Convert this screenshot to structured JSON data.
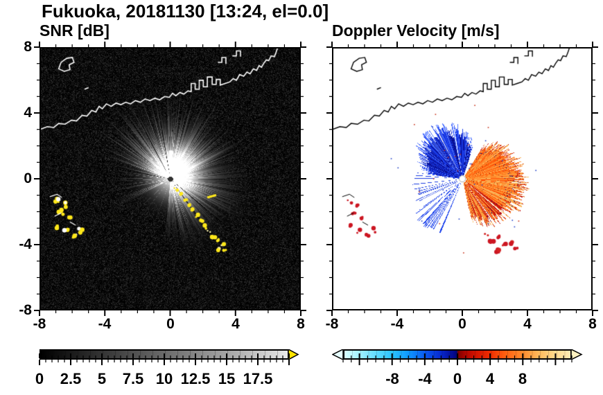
{
  "title": "Fukuoka, 20181130 [13:24, el=0.0]",
  "panels": {
    "snr": {
      "title": "SNR [dB]"
    },
    "velocity": {
      "title": "Doppler Velocity [m/s]"
    }
  },
  "axes": {
    "x_ticks": [
      "-8",
      "-4",
      "0",
      "4",
      "8"
    ],
    "y_ticks": [
      "8",
      "4",
      "0",
      "-4",
      "-8"
    ],
    "x_range": [
      -8,
      8
    ],
    "y_range": [
      -8,
      8
    ],
    "major_tick_step": 4,
    "minor_tick_step": 1
  },
  "colorbars": {
    "snr": {
      "labels": [
        "0",
        "2.5",
        "5",
        "7.5",
        "10",
        "12.5",
        "15",
        "17.5"
      ],
      "min": 0,
      "max": 20,
      "major_step": 2.5,
      "minor_step": 0.5,
      "scale_colors": [
        "#000000",
        "#e9e9e9"
      ],
      "overflow_arrow_color": "#ffe400"
    },
    "velocity": {
      "labels": [
        "-8",
        "-4",
        "0",
        "4",
        "8"
      ],
      "min": -14,
      "max": 14,
      "major_step": 4,
      "minor_step": 1,
      "underflow_arrow_color": "#e6ffff",
      "overflow_arrow_color": "#fff1c0"
    }
  },
  "chart_data": [
    {
      "type": "heatmap",
      "panel": "snr",
      "title": "SNR [dB]",
      "xlim": [
        -8,
        8
      ],
      "ylim": [
        -8,
        8
      ],
      "colorbar_ticks": [
        0,
        2.5,
        5,
        7.5,
        10,
        12.5,
        15,
        17.5
      ],
      "units": "dB",
      "description": "Radar SNR PPI centered on the radar at (0,0): bright streaky echo fan to the N-NE (radius 3.5-5.5), diffuse gray haze to the E-SE, mostly dark speckle to the SW, yellow high-SNR ground-clutter arc curving SE from the radar plus clutter patches near the west edge, coastline drawn in white.",
      "features": {
        "radar_origin": [
          0,
          0
        ],
        "bright_core_center": [
          0.3,
          0.45
        ],
        "bright_core_radius": 1.55,
        "fan_sector_deg": [
          20,
          160
        ],
        "haze_sector_deg": [
          -95,
          20
        ],
        "shadow_azimuths_deg": [
          -40,
          -54,
          100,
          118,
          168
        ],
        "spoke_azimuths_deg": [
          58,
          66,
          74,
          83,
          92,
          101,
          110,
          119,
          128,
          137,
          146
        ],
        "clutter_color": "#ffe81a",
        "clutter_arc": [
          [
            0.35,
            -0.6
          ],
          [
            0.65,
            -0.9
          ],
          [
            0.95,
            -1.25
          ],
          [
            1.15,
            -1.6
          ],
          [
            1.4,
            -1.95
          ],
          [
            1.65,
            -2.3
          ],
          [
            1.9,
            -2.6
          ],
          [
            2.15,
            -2.95
          ],
          [
            2.4,
            -3.25
          ],
          [
            2.7,
            -3.55
          ],
          [
            3.0,
            -3.8
          ],
          [
            3.25,
            -4.1
          ],
          [
            2.95,
            -4.35
          ],
          [
            3.35,
            -4.45
          ]
        ],
        "clutter_dash": [
          [
            2.3,
            -1.15
          ],
          [
            2.85,
            -1.0
          ]
        ],
        "clutter_west": [
          [
            -7.0,
            -1.35
          ],
          [
            -6.55,
            -1.6
          ],
          [
            -6.75,
            -2.05
          ],
          [
            -6.3,
            -2.4
          ],
          [
            -6.9,
            -2.95
          ],
          [
            -6.45,
            -3.25
          ],
          [
            -5.95,
            -3.5
          ],
          [
            -5.5,
            -3.15
          ]
        ]
      }
    },
    {
      "type": "heatmap",
      "panel": "velocity",
      "title": "Doppler Velocity [m/s]",
      "xlim": [
        -8,
        8
      ],
      "ylim": [
        -8,
        8
      ],
      "colorbar_ticks": [
        -8,
        -4,
        0,
        4,
        8
      ],
      "units": "m/s",
      "description": "Doppler velocity PPI: negative (blue/navy, toward radar) lobe NW of the radar out to ~3, positive (orange/red, away) lobe E-SE out to ~3.6 with red and navy mottling at its edge, thin blue rays to the W and SW, red clutter patches near the west edge and to the SE, coastline drawn in black.",
      "features": {
        "radar_origin": [
          0,
          0
        ],
        "toward_lobe_sector_deg": [
          72,
          172
        ],
        "away_lobe_sector_deg": [
          -78,
          58
        ],
        "thin_ray_sectors_deg": [
          [
            172,
            215
          ],
          [
            215,
            252
          ]
        ],
        "shadow_azimuths_deg": [
          -40,
          -54,
          100,
          118,
          66
        ],
        "clutter_color": "#cc1622",
        "clutter_west": [
          [
            -7.0,
            -1.35
          ],
          [
            -6.55,
            -1.6
          ],
          [
            -6.75,
            -2.05
          ],
          [
            -6.3,
            -2.4
          ],
          [
            -6.9,
            -2.95
          ],
          [
            -6.45,
            -3.25
          ],
          [
            -5.95,
            -3.5
          ],
          [
            -5.5,
            -3.15
          ]
        ],
        "clutter_southeast": [
          [
            1.5,
            -3.45
          ],
          [
            1.85,
            -3.8
          ],
          [
            2.3,
            -3.6
          ],
          [
            2.6,
            -4.1
          ],
          [
            3.0,
            -3.95
          ],
          [
            3.3,
            -4.35
          ],
          [
            2.2,
            -4.45
          ]
        ]
      }
    }
  ],
  "coastline": {
    "mainland": [
      [
        -8,
        3.05
      ],
      [
        -7.6,
        3.2
      ],
      [
        -7.2,
        3.15
      ],
      [
        -6.9,
        3.4
      ],
      [
        -6.5,
        3.35
      ],
      [
        -6.1,
        3.6
      ],
      [
        -5.8,
        3.55
      ],
      [
        -5.45,
        3.9
      ],
      [
        -5.15,
        3.85
      ],
      [
        -4.85,
        4.2
      ],
      [
        -4.6,
        4.1
      ],
      [
        -4.4,
        4.45
      ],
      [
        -4.2,
        4.3
      ],
      [
        -3.95,
        4.6
      ],
      [
        -3.65,
        4.45
      ],
      [
        -3.35,
        4.65
      ],
      [
        -3.05,
        4.55
      ],
      [
        -2.75,
        4.7
      ],
      [
        -2.45,
        4.6
      ],
      [
        -2.15,
        4.8
      ],
      [
        -1.85,
        4.7
      ],
      [
        -1.55,
        4.9
      ],
      [
        -1.25,
        4.8
      ],
      [
        -0.95,
        4.95
      ],
      [
        -0.65,
        4.85
      ],
      [
        -0.35,
        5.05
      ],
      [
        -0.05,
        5.0
      ],
      [
        0.15,
        5.25
      ],
      [
        0.35,
        5.1
      ],
      [
        0.6,
        5.3
      ],
      [
        0.85,
        5.2
      ],
      [
        1.1,
        5.4
      ],
      [
        1.3,
        5.35
      ],
      [
        1.3,
        5.85
      ],
      [
        1.55,
        5.85
      ],
      [
        1.55,
        5.5
      ],
      [
        1.8,
        5.5
      ],
      [
        1.8,
        6.05
      ],
      [
        2.05,
        6.05
      ],
      [
        2.05,
        5.65
      ],
      [
        2.3,
        5.65
      ],
      [
        2.3,
        6.25
      ],
      [
        2.6,
        6.25
      ],
      [
        2.6,
        5.8
      ],
      [
        2.85,
        5.8
      ],
      [
        2.85,
        6.1
      ],
      [
        3.1,
        6.1
      ],
      [
        3.1,
        5.75
      ],
      [
        3.4,
        5.85
      ],
      [
        3.7,
        5.95
      ],
      [
        3.9,
        6.15
      ],
      [
        4.1,
        6.05
      ],
      [
        4.3,
        6.4
      ],
      [
        4.55,
        6.3
      ],
      [
        4.75,
        6.55
      ],
      [
        4.95,
        6.45
      ],
      [
        5.15,
        6.75
      ],
      [
        5.35,
        6.65
      ],
      [
        5.5,
        6.95
      ],
      [
        5.65,
        6.85
      ],
      [
        5.8,
        7.1
      ],
      [
        5.95,
        7.3
      ],
      [
        6.1,
        7.25
      ],
      [
        6.25,
        7.55
      ],
      [
        6.45,
        7.5
      ],
      [
        6.55,
        7.75
      ],
      [
        6.65,
        8.05
      ]
    ],
    "island": [
      [
        -6.9,
        6.75
      ],
      [
        -6.55,
        6.6
      ],
      [
        -6.2,
        6.7
      ],
      [
        -6.25,
        7.0
      ],
      [
        -5.95,
        7.15
      ],
      [
        -6.05,
        7.45
      ],
      [
        -6.4,
        7.4
      ],
      [
        -6.75,
        7.15
      ]
    ],
    "fragments": [
      [
        [
          2.95,
          7.15
        ],
        [
          3.2,
          7.15
        ],
        [
          3.2,
          7.45
        ],
        [
          3.45,
          7.45
        ],
        [
          3.45,
          7.05
        ]
      ],
      [
        [
          3.85,
          7.55
        ],
        [
          4.1,
          7.55
        ],
        [
          4.1,
          7.85
        ],
        [
          4.35,
          7.85
        ],
        [
          4.35,
          7.5
        ]
      ],
      [
        [
          -5.3,
          5.5
        ],
        [
          -5.05,
          5.6
        ]
      ]
    ],
    "west_fragments": [
      [
        [
          -7.45,
          -1.1
        ],
        [
          -7.0,
          -0.95
        ],
        [
          -6.7,
          -1.15
        ]
      ],
      [
        [
          -7.15,
          -2.3
        ],
        [
          -6.75,
          -2.1
        ]
      ],
      [
        [
          -6.2,
          -2.65
        ],
        [
          -5.85,
          -2.85
        ]
      ]
    ]
  }
}
